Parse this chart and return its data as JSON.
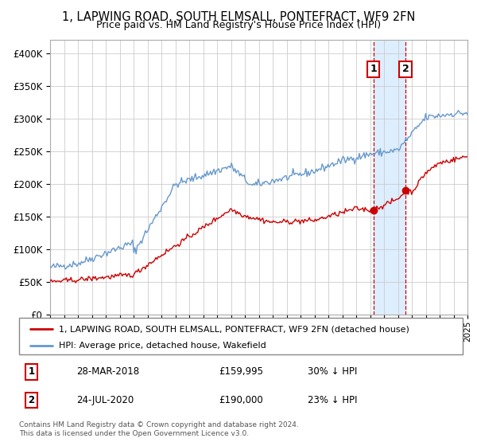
{
  "title": "1, LAPWING ROAD, SOUTH ELMSALL, PONTEFRACT, WF9 2FN",
  "subtitle": "Price paid vs. HM Land Registry's House Price Index (HPI)",
  "legend_label_red": "1, LAPWING ROAD, SOUTH ELMSALL, PONTEFRACT, WF9 2FN (detached house)",
  "legend_label_blue": "HPI: Average price, detached house, Wakefield",
  "transaction1_date": "28-MAR-2018",
  "transaction1_price": "£159,995",
  "transaction1_hpi": "30% ↓ HPI",
  "transaction2_date": "24-JUL-2020",
  "transaction2_price": "£190,000",
  "transaction2_hpi": "23% ↓ HPI",
  "footer": "Contains HM Land Registry data © Crown copyright and database right 2024.\nThis data is licensed under the Open Government Licence v3.0.",
  "color_red": "#cc0000",
  "color_blue": "#6699cc",
  "color_highlight": "#ddeeff",
  "ylim": [
    0,
    420000
  ],
  "yticks": [
    0,
    50000,
    100000,
    150000,
    200000,
    250000,
    300000,
    350000,
    400000
  ],
  "marker1_x": 2018.23,
  "marker1_y_red": 159995,
  "marker2_x": 2020.56,
  "marker2_y_red": 190000,
  "xmin": 1995,
  "xmax": 2025
}
